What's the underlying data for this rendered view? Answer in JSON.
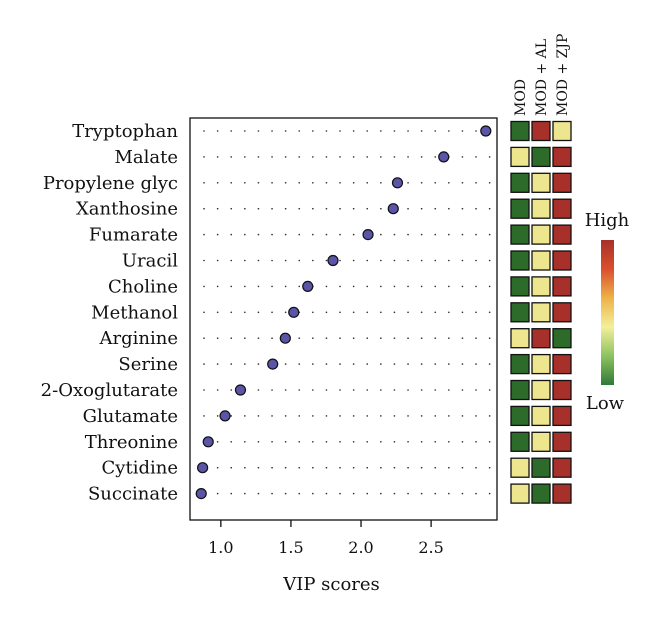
{
  "chart_data": {
    "type": "scatter",
    "xlabel": "VIP scores",
    "xlim": [
      0.78,
      2.97
    ],
    "xticks": [
      1.0,
      1.5,
      2.0,
      2.5
    ],
    "xtick_labels": [
      "1.0",
      "1.5",
      "2.0",
      "2.5"
    ],
    "grid": "dotted horizontal guides",
    "point_color": "#5a55a8",
    "categories": [
      "Tryptophan",
      "Malate",
      "Propylene glyc",
      "Xanthosine",
      "Fumarate",
      "Uracil",
      "Choline",
      "Methanol",
      "Arginine",
      "Serine",
      "2-Oxoglutarate",
      "Glutamate",
      "Threonine",
      "Cytidine",
      "Succinate"
    ],
    "values": [
      2.89,
      2.59,
      2.26,
      2.23,
      2.05,
      1.8,
      1.62,
      1.52,
      1.46,
      1.37,
      1.14,
      1.03,
      0.91,
      0.87,
      0.86
    ],
    "heatmap": {
      "columns": [
        "MOD",
        "MOD + AL",
        "MOD + ZJP"
      ],
      "levels": [
        [
          "low",
          "high",
          "mid"
        ],
        [
          "mid",
          "low",
          "high"
        ],
        [
          "low",
          "mid",
          "high"
        ],
        [
          "low",
          "mid",
          "high"
        ],
        [
          "low",
          "mid",
          "high"
        ],
        [
          "low",
          "mid",
          "high"
        ],
        [
          "low",
          "mid",
          "high"
        ],
        [
          "low",
          "mid",
          "high"
        ],
        [
          "mid",
          "high",
          "low"
        ],
        [
          "low",
          "mid",
          "high"
        ],
        [
          "low",
          "mid",
          "high"
        ],
        [
          "low",
          "mid",
          "high"
        ],
        [
          "low",
          "mid",
          "high"
        ],
        [
          "mid",
          "low",
          "high"
        ],
        [
          "mid",
          "low",
          "high"
        ]
      ],
      "colors": {
        "low": "#2d6b2b",
        "mid": "#eee58f",
        "high": "#a8302b"
      }
    },
    "legend": {
      "high_label": "High",
      "low_label": "Low",
      "gradient": [
        "#a8302b",
        "#d9502b",
        "#eeb24a",
        "#f3ef9a",
        "#8ec25f",
        "#2f7a37"
      ],
      "placement": "right"
    }
  }
}
